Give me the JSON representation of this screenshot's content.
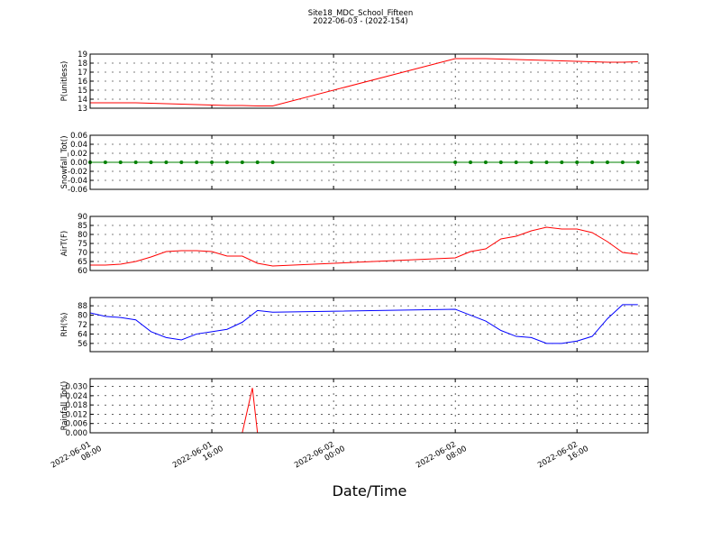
{
  "title": "Site18_MDC_School_Fifteen",
  "subtitle": "2022-06-03 - (2022-154)",
  "xlabel": "Date/Time",
  "xlim": [
    "2022-06-01 08:00",
    "2022-06-02 20:40"
  ],
  "xticks": [
    "2022-06-01 08:00",
    "2022-06-01 16:00",
    "2022-06-02 00:00",
    "2022-06-02 08:00",
    "2022-06-02 16:00"
  ],
  "grid": true,
  "chart_data": [
    {
      "type": "line",
      "ylabel": "P(unitless)",
      "color": "#ff0000",
      "x": [
        "2022-06-01 08:00",
        "2022-06-01 09:00",
        "2022-06-01 10:00",
        "2022-06-01 11:00",
        "2022-06-01 12:00",
        "2022-06-01 13:00",
        "2022-06-01 14:00",
        "2022-06-01 15:00",
        "2022-06-01 16:00",
        "2022-06-01 17:00",
        "2022-06-01 18:00",
        "2022-06-01 19:00",
        "2022-06-01 20:00",
        "2022-06-02 08:00",
        "2022-06-02 09:00",
        "2022-06-02 10:00",
        "2022-06-02 11:00",
        "2022-06-02 12:00",
        "2022-06-02 13:00",
        "2022-06-02 14:00",
        "2022-06-02 15:00",
        "2022-06-02 16:00",
        "2022-06-02 17:00",
        "2022-06-02 18:00",
        "2022-06-02 19:00",
        "2022-06-02 20:00"
      ],
      "values": [
        13.6,
        13.6,
        13.6,
        13.6,
        13.55,
        13.5,
        13.45,
        13.4,
        13.35,
        13.3,
        13.3,
        13.25,
        13.25,
        18.5,
        18.5,
        18.5,
        18.45,
        18.4,
        18.35,
        18.3,
        18.25,
        18.2,
        18.15,
        18.1,
        18.1,
        18.15
      ],
      "ylim": [
        13,
        19
      ],
      "yticks": [
        13,
        14,
        15,
        16,
        17,
        18,
        19
      ]
    },
    {
      "type": "line",
      "ylabel": "Snowfall_Tot()",
      "color": "#008000",
      "marker": true,
      "x": [
        "2022-06-01 08:00",
        "2022-06-01 09:00",
        "2022-06-01 10:00",
        "2022-06-01 11:00",
        "2022-06-01 12:00",
        "2022-06-01 13:00",
        "2022-06-01 14:00",
        "2022-06-01 15:00",
        "2022-06-01 16:00",
        "2022-06-01 17:00",
        "2022-06-01 18:00",
        "2022-06-01 19:00",
        "2022-06-01 20:00",
        "2022-06-02 08:00",
        "2022-06-02 09:00",
        "2022-06-02 10:00",
        "2022-06-02 11:00",
        "2022-06-02 12:00",
        "2022-06-02 13:00",
        "2022-06-02 14:00",
        "2022-06-02 15:00",
        "2022-06-02 16:00",
        "2022-06-02 17:00",
        "2022-06-02 18:00",
        "2022-06-02 19:00",
        "2022-06-02 20:00"
      ],
      "values": [
        0,
        0,
        0,
        0,
        0,
        0,
        0,
        0,
        0,
        0,
        0,
        0,
        0,
        0,
        0,
        0,
        0,
        0,
        0,
        0,
        0,
        0,
        0,
        0,
        0,
        0
      ],
      "ylim": [
        -0.06,
        0.06
      ],
      "yticks": [
        {
          "value": -0.06,
          "label": "-0.06"
        },
        {
          "value": -0.04,
          "label": "-0.04"
        },
        {
          "value": -0.02,
          "label": "-0.02"
        },
        {
          "value": 0,
          "label": "0.00"
        },
        {
          "value": 0.02,
          "label": "0.02"
        },
        {
          "value": 0.04,
          "label": "0.04"
        },
        {
          "value": 0.06,
          "label": "0.06"
        }
      ]
    },
    {
      "type": "line",
      "ylabel": "AirT(F)",
      "color": "#ff0000",
      "x": [
        "2022-06-01 08:00",
        "2022-06-01 09:00",
        "2022-06-01 10:00",
        "2022-06-01 11:00",
        "2022-06-01 12:00",
        "2022-06-01 13:00",
        "2022-06-01 14:00",
        "2022-06-01 15:00",
        "2022-06-01 16:00",
        "2022-06-01 17:00",
        "2022-06-01 18:00",
        "2022-06-01 19:00",
        "2022-06-01 20:00",
        "2022-06-02 08:00",
        "2022-06-02 09:00",
        "2022-06-02 10:00",
        "2022-06-02 11:00",
        "2022-06-02 12:00",
        "2022-06-02 13:00",
        "2022-06-02 14:00",
        "2022-06-02 15:00",
        "2022-06-02 16:00",
        "2022-06-02 17:00",
        "2022-06-02 18:00",
        "2022-06-02 19:00",
        "2022-06-02 20:00"
      ],
      "values": [
        63,
        63,
        63.5,
        65,
        67.5,
        70.5,
        71,
        71,
        70.5,
        68,
        68,
        64,
        62.5,
        67,
        70.5,
        72,
        77.5,
        79,
        82,
        84,
        83,
        83,
        81,
        76,
        70,
        69
      ],
      "ylim": [
        60,
        90
      ],
      "yticks": [
        60,
        65,
        70,
        75,
        80,
        85,
        90
      ]
    },
    {
      "type": "line",
      "ylabel": "RH(%)",
      "color": "#0000ff",
      "x": [
        "2022-06-01 08:00",
        "2022-06-01 09:00",
        "2022-06-01 10:00",
        "2022-06-01 11:00",
        "2022-06-01 12:00",
        "2022-06-01 13:00",
        "2022-06-01 14:00",
        "2022-06-01 15:00",
        "2022-06-01 16:00",
        "2022-06-01 17:00",
        "2022-06-01 18:00",
        "2022-06-01 19:00",
        "2022-06-01 20:00",
        "2022-06-02 08:00",
        "2022-06-02 09:00",
        "2022-06-02 10:00",
        "2022-06-02 11:00",
        "2022-06-02 12:00",
        "2022-06-02 13:00",
        "2022-06-02 14:00",
        "2022-06-02 15:00",
        "2022-06-02 16:00",
        "2022-06-02 17:00",
        "2022-06-02 18:00",
        "2022-06-02 19:00",
        "2022-06-02 20:00"
      ],
      "values": [
        82,
        79,
        78,
        76,
        66,
        61,
        59,
        64,
        66,
        68,
        74,
        84,
        82.5,
        85,
        80,
        75,
        67,
        62,
        61,
        56,
        56,
        58,
        62,
        77,
        89,
        89
      ],
      "ylim": [
        49,
        95
      ],
      "yticks": [
        56,
        64,
        72,
        80,
        88
      ]
    },
    {
      "type": "line",
      "ylabel": "Rainfall_Tot()",
      "color": "#ff0000",
      "x": [
        "2022-06-01 08:00",
        "2022-06-01 12:00",
        "2022-06-01 18:00",
        "2022-06-01 18:40",
        "2022-06-01 19:00",
        "2022-06-02 08:00",
        "2022-06-02 16:00",
        "2022-06-02 20:40"
      ],
      "values": [
        0,
        0,
        0,
        0.029,
        0,
        0,
        0,
        0
      ],
      "ylim": [
        0,
        0.035
      ],
      "yticks": [
        {
          "value": 0,
          "label": "0.000"
        },
        {
          "value": 0.006,
          "label": "0.006"
        },
        {
          "value": 0.012,
          "label": "0.012"
        },
        {
          "value": 0.018,
          "label": "0.018"
        },
        {
          "value": 0.024,
          "label": "0.024"
        },
        {
          "value": 0.03,
          "label": "0.030"
        }
      ]
    }
  ]
}
